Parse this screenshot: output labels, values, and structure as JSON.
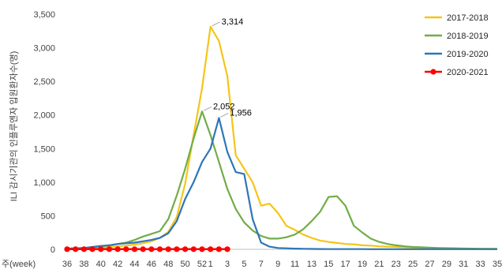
{
  "chart_data": {
    "type": "line",
    "ylabel": "ILI 감시기관의 인플루엔자 입원환자수(명)",
    "xlabel_prefix": "주(week)",
    "ylim": [
      0,
      3500
    ],
    "y_ticks": [
      "0",
      "500",
      "1,000",
      "1,500",
      "2,000",
      "2,500",
      "3,000",
      "3,500"
    ],
    "weeks": [
      "36",
      "37",
      "38",
      "39",
      "40",
      "41",
      "42",
      "43",
      "44",
      "45",
      "46",
      "47",
      "48",
      "49",
      "50",
      "51",
      "52",
      "1",
      "2",
      "3",
      "4",
      "5",
      "6",
      "7",
      "8",
      "9",
      "10",
      "11",
      "12",
      "13",
      "14",
      "15",
      "16",
      "17",
      "18",
      "19",
      "20",
      "21",
      "22",
      "23",
      "24",
      "25",
      "26",
      "27",
      "28",
      "29",
      "30",
      "31",
      "32",
      "33",
      "34",
      "35"
    ],
    "x_tick_labels": [
      "36",
      "38",
      "40",
      "42",
      "44",
      "46",
      "48",
      "50",
      "52",
      "1",
      "3",
      "5",
      "7",
      "9",
      "11",
      "13",
      "15",
      "17",
      "19",
      "21",
      "23",
      "25",
      "27",
      "29",
      "31",
      "33",
      "35"
    ],
    "legend_position": "top-right",
    "series": [
      {
        "name": "2017-2018",
        "color": "#f5c518",
        "values": [
          5,
          8,
          12,
          18,
          25,
          35,
          45,
          55,
          70,
          90,
          120,
          170,
          260,
          480,
          980,
          1700,
          2400,
          3314,
          3100,
          2580,
          1400,
          1200,
          1000,
          650,
          680,
          540,
          350,
          290,
          220,
          170,
          130,
          110,
          95,
          80,
          75,
          60,
          55,
          45,
          40,
          35,
          30,
          25,
          22,
          20,
          18,
          15,
          13,
          12,
          10,
          8,
          8,
          7
        ]
      },
      {
        "name": "2018-2019",
        "color": "#70ad47",
        "values": [
          10,
          15,
          20,
          30,
          45,
          60,
          80,
          100,
          140,
          190,
          230,
          270,
          450,
          800,
          1200,
          1650,
          2052,
          1700,
          1300,
          900,
          600,
          400,
          280,
          200,
          160,
          160,
          180,
          220,
          300,
          420,
          560,
          780,
          790,
          650,
          350,
          250,
          160,
          110,
          80,
          60,
          45,
          35,
          30,
          25,
          20,
          18,
          15,
          12,
          10,
          8,
          7,
          6
        ]
      },
      {
        "name": "2019-2020",
        "color": "#2e75b6",
        "values": [
          10,
          15,
          20,
          35,
          50,
          60,
          80,
          90,
          100,
          120,
          140,
          170,
          240,
          420,
          750,
          1000,
          1300,
          1500,
          1956,
          1450,
          1150,
          1120,
          450,
          100,
          40,
          20,
          15,
          10,
          8,
          6,
          5,
          4,
          4,
          3,
          3,
          3,
          2,
          2,
          2,
          2,
          2,
          2,
          2,
          2,
          2,
          2,
          2,
          2,
          2,
          2,
          2,
          2
        ]
      },
      {
        "name": "2020-2021",
        "color": "#ff0000",
        "marker": "circle",
        "values": [
          2,
          2,
          2,
          2,
          2,
          2,
          2,
          2,
          2,
          2,
          2,
          2,
          2,
          2,
          2,
          2,
          2,
          2,
          2,
          2
        ]
      }
    ],
    "annotations": [
      {
        "text": "3,314",
        "series": "2017-2018",
        "week": "1",
        "value": 3314
      },
      {
        "text": "2,052",
        "series": "2018-2019",
        "week": "52",
        "value": 2052
      },
      {
        "text": "1,956",
        "series": "2019-2020",
        "week": "2",
        "value": 1956
      }
    ]
  }
}
